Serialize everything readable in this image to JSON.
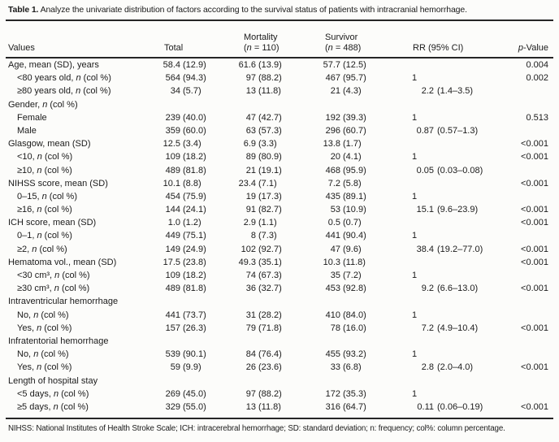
{
  "caption": {
    "label": "Table 1.",
    "text": " Analyze the univariate distribution of factors according to the survival status of patients with intracranial hemorrhage."
  },
  "headers": {
    "values": "Values",
    "total": "Total",
    "mortality": {
      "line1": "Mortality",
      "pre": "(",
      "n": "n",
      "post": " = 110)"
    },
    "survivor": {
      "line1": "Survivor",
      "pre": "(",
      "n": "n",
      "post": " = 488)"
    },
    "rr": "RR (95% CI)",
    "pvalue": {
      "italic": "p",
      "rest": "-Value"
    }
  },
  "rows": [
    {
      "ind": false,
      "lp": "Age, mean (SD), years",
      "ln": "",
      "lpost": "",
      "t": [
        "58.4",
        "(12.9)"
      ],
      "m": [
        "61.6",
        "(13.9)"
      ],
      "s": [
        "57.7",
        "(12.5)"
      ],
      "rr": [
        "",
        ""
      ],
      "p": "0.004"
    },
    {
      "ind": true,
      "lp": "<80 years old, ",
      "ln": "n",
      "lpost": " (col %)",
      "t": [
        "564",
        "(94.3)"
      ],
      "m": [
        "97",
        "(88.2)"
      ],
      "s": [
        "467",
        "(95.7)"
      ],
      "rr": [
        "1",
        ""
      ],
      "p": "0.002"
    },
    {
      "ind": true,
      "lp": "≥80 years old, ",
      "ln": "n",
      "lpost": " (col %)",
      "t": [
        "34",
        "(5.7)"
      ],
      "m": [
        "13",
        "(11.8)"
      ],
      "s": [
        "21",
        "(4.3)"
      ],
      "rr": [
        "2.2",
        "(1.4–3.5)"
      ],
      "p": ""
    },
    {
      "ind": false,
      "lp": "Gender, ",
      "ln": "n",
      "lpost": " (col %)",
      "t": [
        "",
        ""
      ],
      "m": [
        "",
        ""
      ],
      "s": [
        "",
        ""
      ],
      "rr": [
        "",
        ""
      ],
      "p": ""
    },
    {
      "ind": true,
      "lp": "Female",
      "ln": "",
      "lpost": "",
      "t": [
        "239",
        "(40.0)"
      ],
      "m": [
        "47",
        "(42.7)"
      ],
      "s": [
        "192",
        "(39.3)"
      ],
      "rr": [
        "1",
        ""
      ],
      "p": "0.513"
    },
    {
      "ind": true,
      "lp": "Male",
      "ln": "",
      "lpost": "",
      "t": [
        "359",
        "(60.0)"
      ],
      "m": [
        "63",
        "(57.3)"
      ],
      "s": [
        "296",
        "(60.7)"
      ],
      "rr": [
        "0.87",
        "(0.57–1.3)"
      ],
      "p": ""
    },
    {
      "ind": false,
      "lp": "Glasgow, mean (SD)",
      "ln": "",
      "lpost": "",
      "t": [
        "12.5",
        "(3.4)"
      ],
      "m": [
        "6.9",
        "(3.3)"
      ],
      "s": [
        "13.8",
        "(1.7)"
      ],
      "rr": [
        "",
        ""
      ],
      "p": "<0.001"
    },
    {
      "ind": true,
      "lp": "<10, ",
      "ln": "n",
      "lpost": " (col %)",
      "t": [
        "109",
        "(18.2)"
      ],
      "m": [
        "89",
        "(80.9)"
      ],
      "s": [
        "20",
        "(4.1)"
      ],
      "rr": [
        "1",
        ""
      ],
      "p": "<0.001"
    },
    {
      "ind": true,
      "lp": "≥10, ",
      "ln": "n",
      "lpost": " (col %)",
      "t": [
        "489",
        "(81.8)"
      ],
      "m": [
        "21",
        "(19.1)"
      ],
      "s": [
        "468",
        "(95.9)"
      ],
      "rr": [
        "0.05",
        "(0.03–0.08)"
      ],
      "p": ""
    },
    {
      "ind": false,
      "lp": "NIHSS score, mean (SD)",
      "ln": "",
      "lpost": "",
      "t": [
        "10.1",
        "(8.8)"
      ],
      "m": [
        "23.4",
        "(7.1)"
      ],
      "s": [
        "7.2",
        "(5.8)"
      ],
      "rr": [
        "",
        ""
      ],
      "p": "<0.001"
    },
    {
      "ind": true,
      "lp": "0–15, ",
      "ln": "n",
      "lpost": " (col %)",
      "t": [
        "454",
        "(75.9)"
      ],
      "m": [
        "19",
        "(17.3)"
      ],
      "s": [
        "435",
        "(89.1)"
      ],
      "rr": [
        "1",
        ""
      ],
      "p": ""
    },
    {
      "ind": true,
      "lp": "≥16, ",
      "ln": "n",
      "lpost": " (col %)",
      "t": [
        "144",
        "(24.1)"
      ],
      "m": [
        "91",
        "(82.7)"
      ],
      "s": [
        "53",
        "(10.9)"
      ],
      "rr": [
        "15.1",
        "(9.6–23.9)"
      ],
      "p": "<0.001"
    },
    {
      "ind": false,
      "lp": "ICH score, mean (SD)",
      "ln": "",
      "lpost": "",
      "t": [
        "1.0",
        "(1.2)"
      ],
      "m": [
        "2.9",
        "(1.1)"
      ],
      "s": [
        "0.5",
        "(0.7)"
      ],
      "rr": [
        "",
        ""
      ],
      "p": "<0.001"
    },
    {
      "ind": true,
      "lp": "0–1, ",
      "ln": "n",
      "lpost": " (col %)",
      "t": [
        "449",
        "(75.1)"
      ],
      "m": [
        "8",
        "(7.3)"
      ],
      "s": [
        "441",
        "(90.4)"
      ],
      "rr": [
        "1",
        ""
      ],
      "p": ""
    },
    {
      "ind": true,
      "lp": "≥2, ",
      "ln": "n",
      "lpost": " (col %)",
      "t": [
        "149",
        "(24.9)"
      ],
      "m": [
        "102",
        "(92.7)"
      ],
      "s": [
        "47",
        "(9.6)"
      ],
      "rr": [
        "38.4",
        "(19.2–77.0)"
      ],
      "p": "<0.001"
    },
    {
      "ind": false,
      "lp": "Hematoma vol., mean (SD)",
      "ln": "",
      "lpost": "",
      "t": [
        "17.5",
        "(23.8)"
      ],
      "m": [
        "49.3",
        "(35.1)"
      ],
      "s": [
        "10.3",
        "(11.8)"
      ],
      "rr": [
        "",
        ""
      ],
      "p": "<0.001"
    },
    {
      "ind": true,
      "lp": "<30 cm³, ",
      "ln": "n",
      "lpost": " (col %)",
      "t": [
        "109",
        "(18.2)"
      ],
      "m": [
        "74",
        "(67.3)"
      ],
      "s": [
        "35",
        "(7.2)"
      ],
      "rr": [
        "1",
        ""
      ],
      "p": ""
    },
    {
      "ind": true,
      "lp": "≥30 cm³, ",
      "ln": "n",
      "lpost": " (col %)",
      "t": [
        "489",
        "(81.8)"
      ],
      "m": [
        "36",
        "(32.7)"
      ],
      "s": [
        "453",
        "(92.8)"
      ],
      "rr": [
        "9.2",
        "(6.6–13.0)"
      ],
      "p": "<0.001"
    },
    {
      "ind": false,
      "lp": "Intraventricular hemorrhage",
      "ln": "",
      "lpost": "",
      "t": [
        "",
        ""
      ],
      "m": [
        "",
        ""
      ],
      "s": [
        "",
        ""
      ],
      "rr": [
        "",
        ""
      ],
      "p": ""
    },
    {
      "ind": true,
      "lp": "No, ",
      "ln": "n",
      "lpost": " (col %)",
      "t": [
        "441",
        "(73.7)"
      ],
      "m": [
        "31",
        "(28.2)"
      ],
      "s": [
        "410",
        "(84.0)"
      ],
      "rr": [
        "1",
        ""
      ],
      "p": ""
    },
    {
      "ind": true,
      "lp": "Yes, ",
      "ln": "n",
      "lpost": " (col %)",
      "t": [
        "157",
        "(26.3)"
      ],
      "m": [
        "79",
        "(71.8)"
      ],
      "s": [
        "78",
        "(16.0)"
      ],
      "rr": [
        "7.2",
        "(4.9–10.4)"
      ],
      "p": "<0.001"
    },
    {
      "ind": false,
      "lp": "Infratentorial hemorrhage",
      "ln": "",
      "lpost": "",
      "t": [
        "",
        ""
      ],
      "m": [
        "",
        ""
      ],
      "s": [
        "",
        ""
      ],
      "rr": [
        "",
        ""
      ],
      "p": ""
    },
    {
      "ind": true,
      "lp": "No, ",
      "ln": "n",
      "lpost": " (col %)",
      "t": [
        "539",
        "(90.1)"
      ],
      "m": [
        "84",
        "(76.4)"
      ],
      "s": [
        "455",
        "(93.2)"
      ],
      "rr": [
        "1",
        ""
      ],
      "p": ""
    },
    {
      "ind": true,
      "lp": "Yes, ",
      "ln": "n",
      "lpost": " (col %)",
      "t": [
        "59",
        "(9.9)"
      ],
      "m": [
        "26",
        "(23.6)"
      ],
      "s": [
        "33",
        "(6.8)"
      ],
      "rr": [
        "2.8",
        "(2.0–4.0)"
      ],
      "p": "<0.001"
    },
    {
      "ind": false,
      "lp": "Length of hospital stay",
      "ln": "",
      "lpost": "",
      "t": [
        "",
        ""
      ],
      "m": [
        "",
        ""
      ],
      "s": [
        "",
        ""
      ],
      "rr": [
        "",
        ""
      ],
      "p": ""
    },
    {
      "ind": true,
      "lp": "<5 days, ",
      "ln": "n",
      "lpost": " (col %)",
      "t": [
        "269",
        "(45.0)"
      ],
      "m": [
        "97",
        "(88.2)"
      ],
      "s": [
        "172",
        "(35.3)"
      ],
      "rr": [
        "1",
        ""
      ],
      "p": ""
    },
    {
      "ind": true,
      "lp": "≥5 days, ",
      "ln": "n",
      "lpost": " (col %)",
      "t": [
        "329",
        "(55.0)"
      ],
      "m": [
        "13",
        "(11.8)"
      ],
      "s": [
        "316",
        "(64.7)"
      ],
      "rr": [
        "0.11",
        "(0.06–0.19)"
      ],
      "p": "<0.001"
    }
  ],
  "footnote": "NIHSS: National Institutes of Health Stroke Scale; ICH: intracerebral hemorrhage; SD: standard deviation; n: frequency; col%: column percentage.",
  "colors": {
    "text": "#1b1b1b",
    "rule": "#262626",
    "background": "#fcfcfa"
  }
}
